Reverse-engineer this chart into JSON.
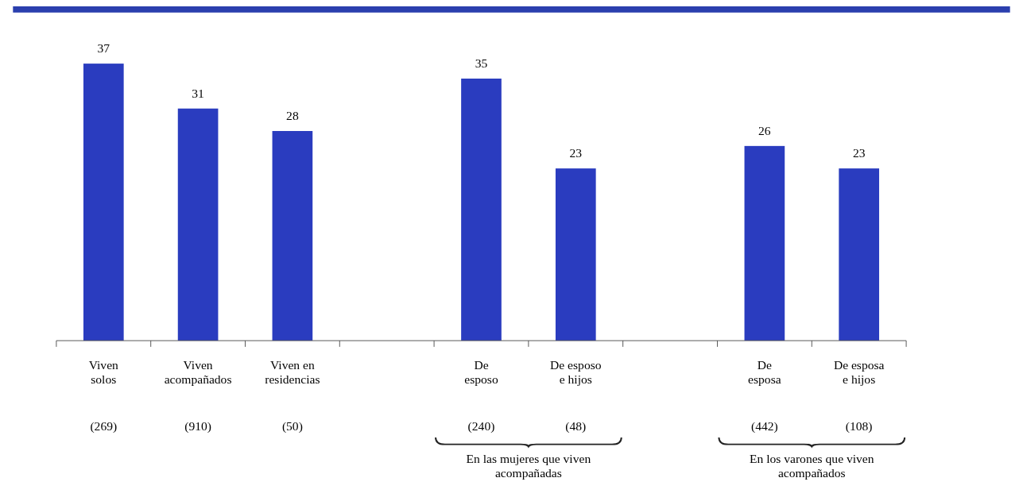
{
  "chart_data": {
    "type": "bar",
    "categories": [
      "Viven solos",
      "Viven acompañados",
      "Viven en residencias",
      null,
      "De esposo",
      "De esposo e hijos",
      null,
      "De esposa",
      "De esposa e hijos"
    ],
    "values": [
      37,
      31,
      28,
      null,
      35,
      23,
      null,
      26,
      23
    ],
    "color": "#2a3cbf",
    "data_labels": true,
    "annotations": [
      "(269)",
      "(910)",
      "(50)",
      "(240)",
      "(48)",
      "(442)",
      "(108)",
      "En las mujeres que viven acompañadas",
      "En los varones que viven acompañados"
    ]
  }
}
